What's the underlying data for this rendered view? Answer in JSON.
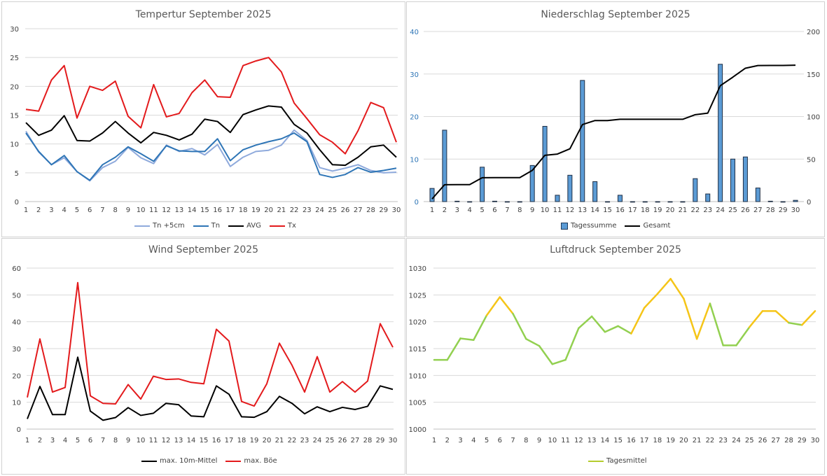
{
  "chart_data": [
    {
      "type": "line",
      "title": "Tempertur September 2025",
      "categories": [
        1,
        2,
        3,
        4,
        5,
        6,
        7,
        8,
        9,
        10,
        11,
        12,
        13,
        14,
        15,
        16,
        17,
        18,
        19,
        20,
        21,
        22,
        23,
        24,
        25,
        26,
        27,
        28,
        29,
        30
      ],
      "ylim": [
        0,
        30
      ],
      "yticks": [
        0,
        5,
        10,
        15,
        20,
        25,
        30
      ],
      "grid": true,
      "legend": "bottom",
      "series": [
        {
          "name": "Tn +5cm",
          "color": "#8faadc",
          "values": [
            12.2,
            8.6,
            6.4,
            7.6,
            5.2,
            3.6,
            5.9,
            7.0,
            9.4,
            7.6,
            6.6,
            9.8,
            8.7,
            9.2,
            8.1,
            9.9,
            6.1,
            7.7,
            8.7,
            8.9,
            9.8,
            12.4,
            10.6,
            5.9,
            5.3,
            5.8,
            6.4,
            5.4,
            5.0,
            5.1
          ]
        },
        {
          "name": "Tn",
          "color": "#2e75b6",
          "values": [
            11.9,
            8.7,
            6.4,
            8.0,
            5.2,
            3.7,
            6.4,
            7.7,
            9.5,
            8.3,
            7.0,
            9.7,
            8.8,
            8.7,
            8.7,
            10.9,
            7.1,
            9.0,
            9.8,
            10.4,
            10.9,
            11.9,
            10.4,
            4.7,
            4.2,
            4.7,
            5.9,
            5.1,
            5.4,
            5.8
          ]
        },
        {
          "name": "AVG",
          "color": "#000000",
          "values": [
            13.7,
            11.5,
            12.4,
            14.9,
            10.6,
            10.5,
            11.9,
            13.9,
            11.9,
            10.2,
            12.0,
            11.5,
            10.7,
            11.7,
            14.3,
            13.9,
            12.0,
            15.1,
            15.9,
            16.6,
            16.4,
            13.4,
            11.9,
            9.0,
            6.4,
            6.3,
            7.7,
            9.5,
            9.8,
            7.7
          ]
        },
        {
          "name": "Tx",
          "color": "#e31a1c",
          "values": [
            16.0,
            15.7,
            21.1,
            23.6,
            14.5,
            20.0,
            19.3,
            20.9,
            14.8,
            12.8,
            20.3,
            14.7,
            15.3,
            18.9,
            21.1,
            18.2,
            18.1,
            23.6,
            24.4,
            25.0,
            22.5,
            17.1,
            14.4,
            11.6,
            10.3,
            8.3,
            12.3,
            17.2,
            16.3,
            10.3
          ]
        }
      ]
    },
    {
      "type": "bar+line",
      "title": "Niederschlag September 2025",
      "categories": [
        1,
        2,
        3,
        4,
        5,
        6,
        7,
        8,
        9,
        10,
        11,
        12,
        13,
        14,
        15,
        16,
        17,
        18,
        19,
        20,
        21,
        22,
        23,
        24,
        25,
        26,
        27,
        28,
        29,
        30
      ],
      "ylim": [
        0,
        40
      ],
      "yticks": [
        0,
        10,
        20,
        30,
        40
      ],
      "y2lim": [
        0,
        200
      ],
      "y2ticks": [
        0,
        50,
        100,
        150,
        200
      ],
      "left_axis_color": "#2e75b6",
      "grid": true,
      "legend": "bottom",
      "series": [
        {
          "name": "Tagessumme",
          "type": "bar",
          "axis": "left",
          "color": "#5b9bd5",
          "values": [
            3.1,
            16.8,
            0.1,
            0,
            8.1,
            0.1,
            0,
            0,
            8.5,
            17.7,
            1.5,
            6.2,
            28.5,
            4.7,
            0,
            1.5,
            0,
            0,
            0,
            0,
            0,
            5.4,
            1.8,
            32.3,
            10.0,
            10.5,
            3.2,
            0.1,
            0,
            0.3
          ]
        },
        {
          "name": "Gesamt",
          "type": "line",
          "axis": "right",
          "color": "#000000",
          "values": [
            3.1,
            19.9,
            20.0,
            20.0,
            28.1,
            28.2,
            28.2,
            28.2,
            36.7,
            54.4,
            55.9,
            62.1,
            90.6,
            95.3,
            95.3,
            96.8,
            96.8,
            96.8,
            96.8,
            96.8,
            96.8,
            102.2,
            104.0,
            136.3,
            146.3,
            156.8,
            160.0,
            160.1,
            160.1,
            160.4
          ]
        }
      ]
    },
    {
      "type": "line",
      "title": "Wind September 2025",
      "categories": [
        1,
        2,
        3,
        4,
        5,
        6,
        7,
        8,
        9,
        10,
        11,
        12,
        13,
        14,
        15,
        16,
        17,
        18,
        19,
        20,
        21,
        22,
        23,
        24,
        25,
        26,
        27,
        28,
        29,
        30
      ],
      "ylim": [
        0,
        60
      ],
      "yticks": [
        0,
        10,
        20,
        30,
        40,
        50,
        60
      ],
      "grid": true,
      "legend": "bottom",
      "series": [
        {
          "name": "max. 10m-Mittel",
          "color": "#000000",
          "values": [
            3.8,
            15.9,
            5.4,
            5.4,
            26.8,
            6.7,
            3.3,
            4.3,
            8.0,
            5.1,
            5.9,
            9.6,
            9.1,
            4.9,
            4.6,
            16.1,
            13.0,
            4.6,
            4.4,
            6.5,
            12.2,
            9.6,
            5.7,
            8.3,
            6.5,
            8.1,
            7.3,
            8.5,
            16.1,
            14.8
          ]
        },
        {
          "name": "max. Böe",
          "color": "#e31a1c",
          "values": [
            11.8,
            33.6,
            13.8,
            15.5,
            54.6,
            12.4,
            9.6,
            9.4,
            16.6,
            11.2,
            19.7,
            18.5,
            18.7,
            17.4,
            16.9,
            37.2,
            32.8,
            10.3,
            8.6,
            16.9,
            32.0,
            23.8,
            13.8,
            27.0,
            13.8,
            17.7,
            13.8,
            17.9,
            39.3,
            30.5
          ]
        }
      ]
    },
    {
      "type": "line",
      "title": "Luftdruck September 2025",
      "categories": [
        1,
        2,
        3,
        4,
        5,
        6,
        7,
        8,
        9,
        10,
        11,
        12,
        13,
        14,
        15,
        16,
        17,
        18,
        19,
        20,
        21,
        22,
        23,
        24,
        25,
        26,
        27,
        28,
        29,
        30
      ],
      "ylim": [
        1000,
        1030
      ],
      "yticks": [
        1000,
        1005,
        1010,
        1015,
        1020,
        1025,
        1030
      ],
      "grid": true,
      "legend": "bottom",
      "colors": {
        "low": "#92d050",
        "high": "#f5c518"
      },
      "series": [
        {
          "name": "Tagesmittel",
          "color": "#b5cc2e",
          "values": [
            1012.9,
            1012.9,
            1016.9,
            1016.6,
            1021.2,
            1024.6,
            1021.5,
            1016.8,
            1015.5,
            1012.1,
            1012.9,
            1018.8,
            1021.0,
            1018.1,
            1019.2,
            1017.8,
            1022.6,
            1025.2,
            1028.0,
            1024.3,
            1016.8,
            1023.4,
            1015.6,
            1015.6,
            1019.0,
            1022.0,
            1022.0,
            1019.8,
            1019.4,
            1022.0
          ]
        }
      ]
    }
  ]
}
